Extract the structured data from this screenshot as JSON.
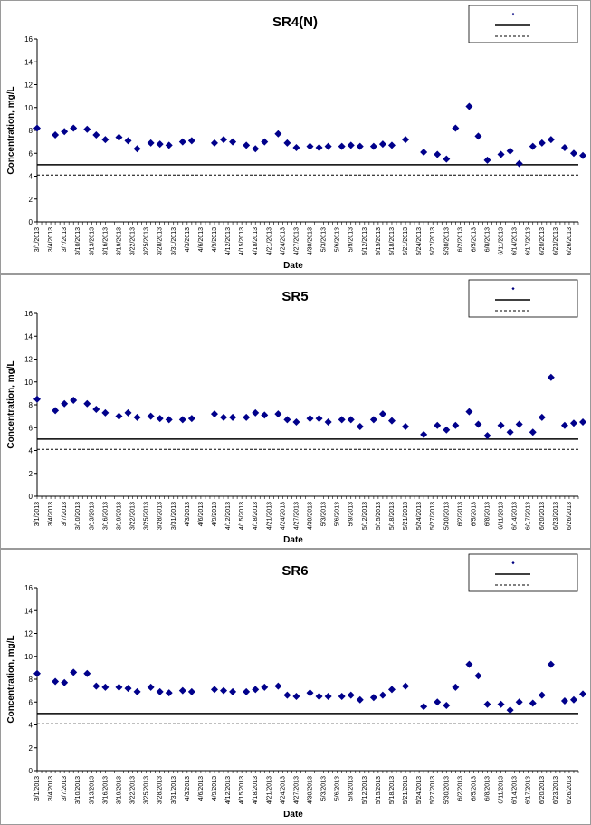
{
  "chart_data": [
    {
      "type": "scatter",
      "title": "SR4(N)",
      "xlabel": "Date",
      "ylabel": "Concentration, mg/L",
      "ylim": [
        0,
        16
      ],
      "yticks": [
        0,
        2,
        4,
        6,
        8,
        10,
        12,
        14,
        16
      ],
      "xlim": [
        "3/1/2013",
        "6/28/2013"
      ],
      "xticks": [
        "3/1/2013",
        "3/4/2013",
        "3/7/2013",
        "3/10/2013",
        "3/13/2013",
        "3/16/2013",
        "3/19/2013",
        "3/22/2013",
        "3/25/2013",
        "3/28/2013",
        "3/31/2013",
        "4/3/2013",
        "4/6/2013",
        "4/9/2013",
        "4/12/2013",
        "4/15/2013",
        "4/18/2013",
        "4/21/2013",
        "4/24/2013",
        "4/27/2013",
        "4/30/2013",
        "5/3/2013",
        "5/6/2013",
        "5/9/2013",
        "5/12/2013",
        "5/15/2013",
        "5/18/2013",
        "5/21/2013",
        "5/24/2013",
        "5/27/2013",
        "5/30/2013",
        "6/2/2013",
        "6/5/2013",
        "6/8/2013",
        "6/11/2013",
        "6/14/2013",
        "6/17/2013",
        "6/20/2013",
        "6/23/2013",
        "6/26/2013"
      ],
      "legend_position": "top-right",
      "legend_lines": [
        {
          "style": "solid"
        },
        {
          "style": "dashed"
        }
      ],
      "ref_lines": [
        {
          "y": 5.0,
          "style": "solid"
        },
        {
          "y": 4.1,
          "style": "dashed"
        }
      ],
      "series": [
        {
          "marker": "diamond",
          "color": "#00008B",
          "x": [
            "3/1/2013",
            "3/5/2013",
            "3/7/2013",
            "3/9/2013",
            "3/12/2013",
            "3/14/2013",
            "3/16/2013",
            "3/19/2013",
            "3/21/2013",
            "3/23/2013",
            "3/26/2013",
            "3/28/2013",
            "3/30/2013",
            "4/2/2013",
            "4/4/2013",
            "4/9/2013",
            "4/11/2013",
            "4/13/2013",
            "4/16/2013",
            "4/18/2013",
            "4/20/2013",
            "4/23/2013",
            "4/25/2013",
            "4/27/2013",
            "4/30/2013",
            "5/2/2013",
            "5/4/2013",
            "5/7/2013",
            "5/9/2013",
            "5/11/2013",
            "5/14/2013",
            "5/16/2013",
            "5/18/2013",
            "5/21/2013",
            "5/25/2013",
            "5/28/2013",
            "5/30/2013",
            "6/1/2013",
            "6/4/2013",
            "6/6/2013",
            "6/8/2013",
            "6/11/2013",
            "6/13/2013",
            "6/15/2013",
            "6/18/2013",
            "6/20/2013",
            "6/22/2013",
            "6/25/2013",
            "6/27/2013",
            "6/29/2013"
          ],
          "y": [
            8.2,
            7.6,
            7.9,
            8.2,
            8.1,
            7.6,
            7.2,
            7.4,
            7.1,
            6.4,
            6.9,
            6.8,
            6.7,
            7.0,
            7.1,
            6.9,
            7.2,
            7.0,
            6.7,
            6.4,
            7.0,
            7.7,
            6.9,
            6.5,
            6.6,
            6.5,
            6.6,
            6.6,
            6.7,
            6.6,
            6.6,
            6.8,
            6.7,
            7.2,
            6.1,
            5.9,
            5.5,
            8.2,
            10.1,
            7.5,
            5.4,
            5.9,
            6.2,
            5.1,
            6.6,
            6.9,
            7.2,
            6.5,
            6.0,
            5.8
          ]
        }
      ]
    },
    {
      "type": "scatter",
      "title": "SR5",
      "xlabel": "Date",
      "ylabel": "Concentration, mg/L",
      "ylim": [
        0,
        16
      ],
      "yticks": [
        0,
        2,
        4,
        6,
        8,
        10,
        12,
        14,
        16
      ],
      "xlim": [
        "3/1/2013",
        "6/28/2013"
      ],
      "xticks": [
        "3/1/2013",
        "3/4/2013",
        "3/7/2013",
        "3/10/2013",
        "3/13/2013",
        "3/16/2013",
        "3/19/2013",
        "3/22/2013",
        "3/25/2013",
        "3/28/2013",
        "3/31/2013",
        "4/3/2013",
        "4/6/2013",
        "4/9/2013",
        "4/12/2013",
        "4/15/2013",
        "4/18/2013",
        "4/21/2013",
        "4/24/2013",
        "4/27/2013",
        "4/30/2013",
        "5/3/2013",
        "5/6/2013",
        "5/9/2013",
        "5/12/2013",
        "5/15/2013",
        "5/18/2013",
        "5/21/2013",
        "5/24/2013",
        "5/27/2013",
        "5/30/2013",
        "6/2/2013",
        "6/5/2013",
        "6/8/2013",
        "6/11/2013",
        "6/14/2013",
        "6/17/2013",
        "6/20/2013",
        "6/23/2013",
        "6/26/2013"
      ],
      "legend_position": "top-right",
      "legend_lines": [
        {
          "style": "solid"
        },
        {
          "style": "dashed"
        }
      ],
      "ref_lines": [
        {
          "y": 5.0,
          "style": "solid"
        },
        {
          "y": 4.1,
          "style": "dashed"
        }
      ],
      "series": [
        {
          "marker": "diamond",
          "color": "#00008B",
          "x": [
            "3/1/2013",
            "3/5/2013",
            "3/7/2013",
            "3/9/2013",
            "3/12/2013",
            "3/14/2013",
            "3/16/2013",
            "3/19/2013",
            "3/21/2013",
            "3/23/2013",
            "3/26/2013",
            "3/28/2013",
            "3/30/2013",
            "4/2/2013",
            "4/4/2013",
            "4/9/2013",
            "4/11/2013",
            "4/13/2013",
            "4/16/2013",
            "4/18/2013",
            "4/20/2013",
            "4/23/2013",
            "4/25/2013",
            "4/27/2013",
            "4/30/2013",
            "5/2/2013",
            "5/4/2013",
            "5/7/2013",
            "5/9/2013",
            "5/11/2013",
            "5/14/2013",
            "5/16/2013",
            "5/18/2013",
            "5/21/2013",
            "5/25/2013",
            "5/28/2013",
            "5/30/2013",
            "6/1/2013",
            "6/4/2013",
            "6/6/2013",
            "6/8/2013",
            "6/11/2013",
            "6/13/2013",
            "6/15/2013",
            "6/18/2013",
            "6/20/2013",
            "6/22/2013",
            "6/25/2013",
            "6/27/2013",
            "6/29/2013"
          ],
          "y": [
            8.5,
            7.5,
            8.1,
            8.4,
            8.1,
            7.6,
            7.3,
            7.0,
            7.3,
            6.9,
            7.0,
            6.8,
            6.7,
            6.7,
            6.8,
            7.2,
            6.9,
            6.9,
            6.9,
            7.3,
            7.1,
            7.2,
            6.7,
            6.5,
            6.8,
            6.8,
            6.5,
            6.7,
            6.7,
            6.1,
            6.7,
            7.2,
            6.6,
            6.1,
            5.4,
            6.2,
            5.8,
            6.2,
            7.4,
            6.3,
            5.3,
            6.2,
            5.6,
            6.3,
            5.6,
            6.9,
            10.4,
            6.2,
            6.4,
            6.5
          ]
        }
      ]
    },
    {
      "type": "scatter",
      "title": "SR6",
      "xlabel": "Date",
      "ylabel": "Concentration, mg/L",
      "ylim": [
        0,
        16
      ],
      "yticks": [
        0,
        2,
        4,
        6,
        8,
        10,
        12,
        14,
        16
      ],
      "xlim": [
        "3/1/2013",
        "6/28/2013"
      ],
      "xticks": [
        "3/1/2013",
        "3/4/2013",
        "3/7/2013",
        "3/10/2013",
        "3/13/2013",
        "3/16/2013",
        "3/19/2013",
        "3/22/2013",
        "3/25/2013",
        "3/28/2013",
        "3/31/2013",
        "4/3/2013",
        "4/6/2013",
        "4/9/2013",
        "4/12/2013",
        "4/15/2013",
        "4/18/2013",
        "4/21/2013",
        "4/24/2013",
        "4/27/2013",
        "4/30/2013",
        "5/3/2013",
        "5/6/2013",
        "5/9/2013",
        "5/12/2013",
        "5/15/2013",
        "5/18/2013",
        "5/21/2013",
        "5/24/2013",
        "5/27/2013",
        "5/30/2013",
        "6/2/2013",
        "6/5/2013",
        "6/8/2013",
        "6/11/2013",
        "6/14/2013",
        "6/17/2013",
        "6/20/2013",
        "6/23/2013",
        "6/26/2013"
      ],
      "legend_position": "top-right",
      "legend_lines": [
        {
          "style": "solid"
        },
        {
          "style": "dashed"
        }
      ],
      "ref_lines": [
        {
          "y": 5.0,
          "style": "solid"
        },
        {
          "y": 4.1,
          "style": "dashed"
        }
      ],
      "series": [
        {
          "marker": "diamond",
          "color": "#00008B",
          "x": [
            "3/1/2013",
            "3/5/2013",
            "3/7/2013",
            "3/9/2013",
            "3/12/2013",
            "3/14/2013",
            "3/16/2013",
            "3/19/2013",
            "3/21/2013",
            "3/23/2013",
            "3/26/2013",
            "3/28/2013",
            "3/30/2013",
            "4/2/2013",
            "4/4/2013",
            "4/9/2013",
            "4/11/2013",
            "4/13/2013",
            "4/16/2013",
            "4/18/2013",
            "4/20/2013",
            "4/23/2013",
            "4/25/2013",
            "4/27/2013",
            "4/30/2013",
            "5/2/2013",
            "5/4/2013",
            "5/7/2013",
            "5/9/2013",
            "5/11/2013",
            "5/14/2013",
            "5/16/2013",
            "5/18/2013",
            "5/21/2013",
            "5/25/2013",
            "5/28/2013",
            "5/30/2013",
            "6/1/2013",
            "6/4/2013",
            "6/6/2013",
            "6/8/2013",
            "6/11/2013",
            "6/13/2013",
            "6/15/2013",
            "6/18/2013",
            "6/20/2013",
            "6/22/2013",
            "6/25/2013",
            "6/27/2013",
            "6/29/2013"
          ],
          "y": [
            8.5,
            7.8,
            7.7,
            8.6,
            8.5,
            7.4,
            7.3,
            7.3,
            7.2,
            6.9,
            7.3,
            6.9,
            6.8,
            7.0,
            6.9,
            7.1,
            7.0,
            6.9,
            6.9,
            7.1,
            7.3,
            7.4,
            6.6,
            6.5,
            6.8,
            6.5,
            6.5,
            6.5,
            6.6,
            6.2,
            6.4,
            6.6,
            7.1,
            7.4,
            5.6,
            6.0,
            5.7,
            7.3,
            9.3,
            8.3,
            5.8,
            5.8,
            5.3,
            6.0,
            5.9,
            6.6,
            9.3,
            6.1,
            6.2,
            6.7
          ]
        }
      ]
    }
  ]
}
